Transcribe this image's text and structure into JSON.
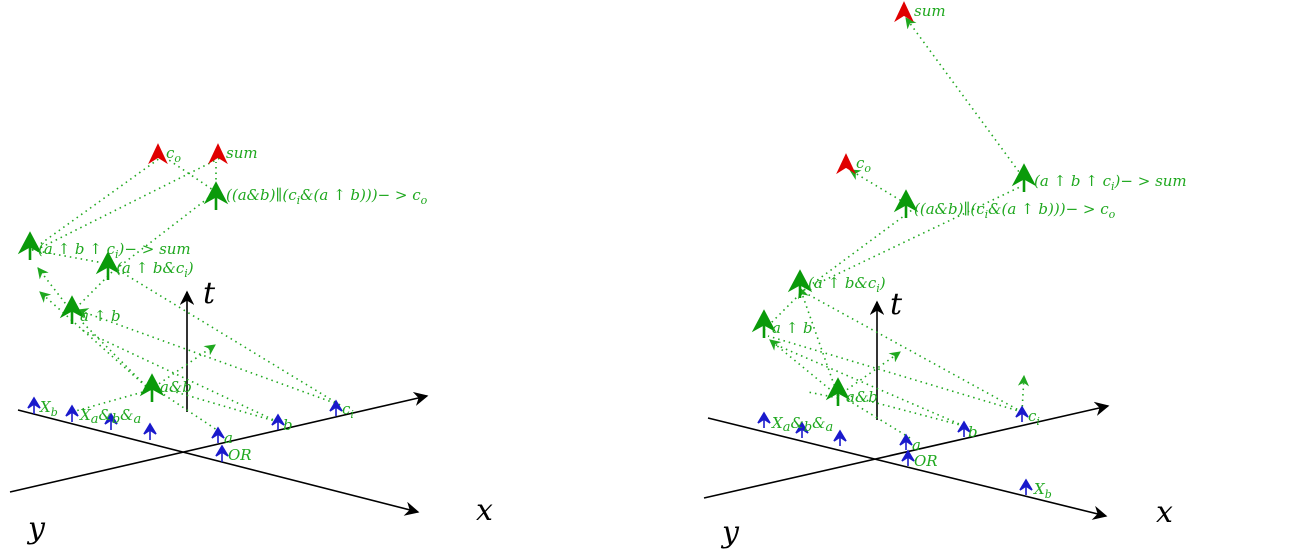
{
  "colors": {
    "green": "#1fa81f",
    "green_dark": "#0a9a0a",
    "blue": "#1a1acc",
    "red": "#e00000",
    "axis": "#000000"
  },
  "diagrams": [
    {
      "axes": {
        "x": "x",
        "y": "y",
        "t": "t"
      },
      "inputs": [
        "X_b",
        "X_a&b&_a",
        "a",
        "b",
        "c_i",
        "OR"
      ],
      "nodes": [
        "a&b",
        "a ↑ b",
        "(a ↑ b&c_i)",
        "(a ↑ b ↑ c_i)− > sum",
        "((a&b)∥(c_i&(a ↑ b)))− > c_o"
      ],
      "outputs": [
        "c_o",
        "sum"
      ]
    },
    {
      "axes": {
        "x": "x",
        "y": "y",
        "t": "t"
      },
      "inputs": [
        "X_a&b&_a",
        "a",
        "b",
        "c_i",
        "OR",
        "X_b"
      ],
      "nodes": [
        "a&b",
        "a ↑ b",
        "(a ↑ b&c_i)",
        "((a&b)∥(c_i&(a ↑ b)))− > c_o",
        "(a ↑ b ↑ c_i)− > sum"
      ],
      "outputs": [
        "c_o",
        "sum"
      ]
    }
  ]
}
